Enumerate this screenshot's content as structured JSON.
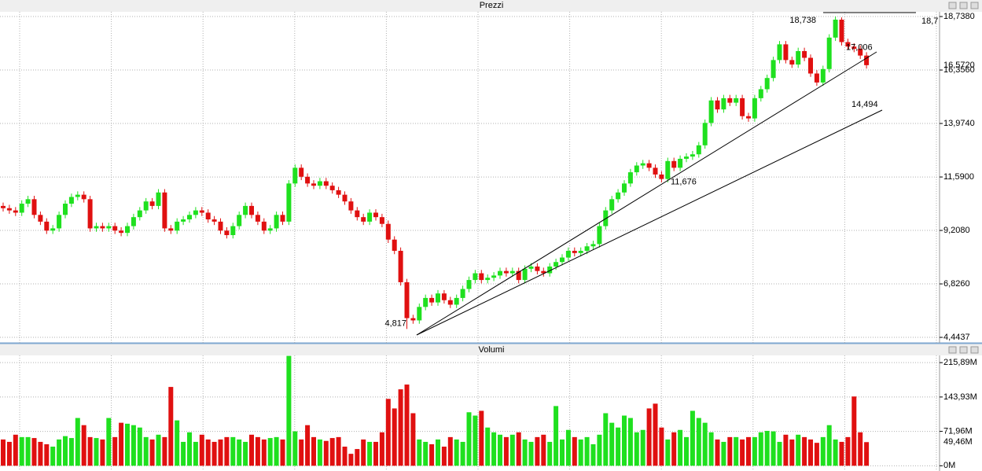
{
  "chart_data": {
    "type": "candlestick",
    "title": "Prezzi",
    "up_color": "#1fe01f",
    "down_color": "#e01010",
    "ylim": [
      4.2,
      18.95
    ],
    "yticks": [
      {
        "value": 4.4437,
        "label": "4,4437"
      },
      {
        "value": 6.826,
        "label": "6,8260"
      },
      {
        "value": 9.208,
        "label": "9,2080"
      },
      {
        "value": 11.59,
        "label": "11,5900"
      },
      {
        "value": 13.974,
        "label": "13,9740"
      },
      {
        "value": 16.356,
        "label": "16,3560"
      },
      {
        "value": 18.738,
        "label": "18,7380"
      }
    ],
    "last_label": {
      "value": 16.572,
      "label": "16,5720"
    },
    "open": [
      10.3,
      10.2,
      10.1,
      10.0,
      10.4,
      10.6,
      9.9,
      9.6,
      9.2,
      9.3,
      9.9,
      10.4,
      10.7,
      10.8,
      10.6,
      9.3,
      9.4,
      9.3,
      9.4,
      9.2,
      9.1,
      9.4,
      9.8,
      10.1,
      10.5,
      10.3,
      10.9,
      9.3,
      9.2,
      9.6,
      9.7,
      9.9,
      10.1,
      10.0,
      9.7,
      9.6,
      9.2,
      9.0,
      9.4,
      9.9,
      10.3,
      9.9,
      9.6,
      9.2,
      9.3,
      9.9,
      9.6,
      11.3,
      12.0,
      11.6,
      11.3,
      11.2,
      11.4,
      11.2,
      11.0,
      10.8,
      10.5,
      10.1,
      9.8,
      9.6,
      10.0,
      9.8,
      9.5,
      8.8,
      8.3,
      6.9,
      5.3,
      5.2,
      5.8,
      6.2,
      6.0,
      6.4,
      6.1,
      5.9,
      6.2,
      6.6,
      7.0,
      7.3,
      7.0,
      7.1,
      7.2,
      7.4,
      7.3,
      7.4,
      7.0,
      7.5,
      7.6,
      7.4,
      7.3,
      7.6,
      7.8,
      8.0,
      8.3,
      8.2,
      8.3,
      8.5,
      8.6,
      9.4,
      10.1,
      10.6,
      10.9,
      11.3,
      11.8,
      12.1,
      12.2,
      12.0,
      11.7,
      11.5,
      12.3,
      12.0,
      12.4,
      12.5,
      12.6,
      13.0,
      14.0,
      15.0,
      14.6,
      15.1,
      14.9,
      15.1,
      14.3,
      14.2,
      15.1,
      15.5,
      16.0,
      16.8,
      17.5,
      16.8,
      16.6,
      17.2,
      16.9,
      16.2,
      15.8,
      16.4,
      17.8,
      18.6,
      17.6,
      17.4,
      17.3,
      17.0
    ],
    "high": [
      10.45,
      10.35,
      10.25,
      10.55,
      10.75,
      10.75,
      10.05,
      9.75,
      9.45,
      10.05,
      10.55,
      10.85,
      10.95,
      10.95,
      10.75,
      9.55,
      9.55,
      9.55,
      9.55,
      9.35,
      9.55,
      9.95,
      10.25,
      10.65,
      10.65,
      11.05,
      11.05,
      9.45,
      9.75,
      9.85,
      10.05,
      10.25,
      10.25,
      10.15,
      9.85,
      9.75,
      9.35,
      9.55,
      10.05,
      10.45,
      10.45,
      10.05,
      9.75,
      9.45,
      10.05,
      10.05,
      11.45,
      12.15,
      12.15,
      11.75,
      11.45,
      11.55,
      11.55,
      11.35,
      11.15,
      10.95,
      10.65,
      10.25,
      9.95,
      10.15,
      10.15,
      9.95,
      9.65,
      8.95,
      8.45,
      7.05,
      5.45,
      5.95,
      6.35,
      6.35,
      6.55,
      6.55,
      6.25,
      6.35,
      6.75,
      7.15,
      7.45,
      7.45,
      7.25,
      7.35,
      7.55,
      7.55,
      7.55,
      7.55,
      7.65,
      7.75,
      7.75,
      7.55,
      7.75,
      7.95,
      8.15,
      8.45,
      8.45,
      8.45,
      8.65,
      8.75,
      9.55,
      10.25,
      10.75,
      11.05,
      11.45,
      11.95,
      12.25,
      12.35,
      12.35,
      12.15,
      11.85,
      12.45,
      12.45,
      12.55,
      12.65,
      12.75,
      13.15,
      14.15,
      15.15,
      15.15,
      15.25,
      15.25,
      15.25,
      15.25,
      14.45,
      15.25,
      15.65,
      16.15,
      16.95,
      17.65,
      17.65,
      16.95,
      17.35,
      17.35,
      17.05,
      16.35,
      16.55,
      17.95,
      18.738,
      18.7,
      17.75,
      17.55,
      17.45,
      17.15
    ],
    "low": [
      10.05,
      9.95,
      9.85,
      9.85,
      10.25,
      9.75,
      9.45,
      9.05,
      9.05,
      9.15,
      9.75,
      10.25,
      10.55,
      10.45,
      9.15,
      9.15,
      9.15,
      9.15,
      9.05,
      8.95,
      8.95,
      9.25,
      9.65,
      9.95,
      10.15,
      10.15,
      9.15,
      9.05,
      9.05,
      9.45,
      9.55,
      9.75,
      9.85,
      9.55,
      9.45,
      9.05,
      8.85,
      8.85,
      9.25,
      9.75,
      9.75,
      9.45,
      9.05,
      9.05,
      9.15,
      9.45,
      9.45,
      11.15,
      11.45,
      11.15,
      11.05,
      11.05,
      11.05,
      10.85,
      10.65,
      10.35,
      9.95,
      9.65,
      9.45,
      9.45,
      9.65,
      9.35,
      8.65,
      8.15,
      6.75,
      4.817,
      5.05,
      5.05,
      5.65,
      5.85,
      5.85,
      5.95,
      5.75,
      5.75,
      6.05,
      6.45,
      6.85,
      6.85,
      6.85,
      6.95,
      7.05,
      7.15,
      7.15,
      6.85,
      6.85,
      7.35,
      7.25,
      7.15,
      7.15,
      7.45,
      7.65,
      7.85,
      8.05,
      8.05,
      8.15,
      8.35,
      8.45,
      9.25,
      9.95,
      10.45,
      10.75,
      11.15,
      11.65,
      11.95,
      11.85,
      11.55,
      11.35,
      11.35,
      11.85,
      11.85,
      12.25,
      12.35,
      12.45,
      12.85,
      13.85,
      14.45,
      14.45,
      14.75,
      14.75,
      14.15,
      14.05,
      14.05,
      14.95,
      15.35,
      15.85,
      16.65,
      16.65,
      16.45,
      16.45,
      16.75,
      16.05,
      15.65,
      15.65,
      16.25,
      17.65,
      17.45,
      17.25,
      17.15,
      16.85,
      16.42
    ],
    "close": [
      10.2,
      10.1,
      10.0,
      10.4,
      10.6,
      9.9,
      9.6,
      9.2,
      9.3,
      9.9,
      10.4,
      10.7,
      10.8,
      10.6,
      9.3,
      9.4,
      9.3,
      9.4,
      9.2,
      9.1,
      9.4,
      9.8,
      10.1,
      10.5,
      10.3,
      10.9,
      9.3,
      9.2,
      9.6,
      9.7,
      9.9,
      10.1,
      10.0,
      9.7,
      9.6,
      9.2,
      9.0,
      9.4,
      9.9,
      10.3,
      9.9,
      9.6,
      9.2,
      9.3,
      9.9,
      9.6,
      11.3,
      12.0,
      11.6,
      11.3,
      11.2,
      11.4,
      11.2,
      11.0,
      10.8,
      10.5,
      10.1,
      9.8,
      9.6,
      10.0,
      9.8,
      9.5,
      8.8,
      8.3,
      6.9,
      5.3,
      5.2,
      5.8,
      6.2,
      6.0,
      6.4,
      6.1,
      5.9,
      6.2,
      6.6,
      7.0,
      7.3,
      7.0,
      7.1,
      7.2,
      7.4,
      7.3,
      7.4,
      7.0,
      7.5,
      7.6,
      7.4,
      7.3,
      7.6,
      7.8,
      8.0,
      8.3,
      8.2,
      8.3,
      8.5,
      8.6,
      9.4,
      10.1,
      10.6,
      10.9,
      11.3,
      11.8,
      12.1,
      12.2,
      12.0,
      11.7,
      11.5,
      12.3,
      12.0,
      12.4,
      12.5,
      12.6,
      13.0,
      14.0,
      15.0,
      14.6,
      15.1,
      14.9,
      15.1,
      14.3,
      14.2,
      15.1,
      15.5,
      16.0,
      16.8,
      17.5,
      16.8,
      16.6,
      17.2,
      16.9,
      16.2,
      15.8,
      16.4,
      17.8,
      18.6,
      17.6,
      17.4,
      17.3,
      17.0,
      16.572
    ],
    "annotations": [
      {
        "label": "18,738",
        "value": 18.738
      },
      {
        "label": "17,006",
        "value": 17.006
      },
      {
        "label": "14,494",
        "value": 14.494
      },
      {
        "label": "11,676",
        "value": 11.676
      },
      {
        "label": "4,817",
        "value": 4.817
      },
      {
        "label": "18,7",
        "value": 18.738
      }
    ],
    "volume": {
      "title": "Volumi",
      "ylim": [
        -11,
        231
      ],
      "yticks": [
        {
          "value": 0,
          "label": "0M"
        },
        {
          "value": 71.96,
          "label": "71,96M"
        },
        {
          "value": 143.93,
          "label": "143,93M"
        },
        {
          "value": 215.89,
          "label": "215,89M"
        }
      ],
      "last_label": {
        "value": 49.46,
        "label": "49,46M"
      },
      "values": [
        55,
        50,
        65,
        60,
        60,
        58,
        50,
        45,
        40,
        55,
        62,
        58,
        100,
        85,
        60,
        58,
        55,
        100,
        60,
        90,
        88,
        85,
        80,
        60,
        55,
        65,
        60,
        165,
        95,
        50,
        70,
        50,
        65,
        55,
        50,
        55,
        60,
        60,
        55,
        50,
        65,
        60,
        55,
        58,
        60,
        55,
        230,
        72,
        55,
        85,
        60,
        55,
        52,
        58,
        60,
        40,
        25,
        35,
        55,
        50,
        50,
        70,
        140,
        120,
        160,
        170,
        110,
        55,
        50,
        45,
        55,
        40,
        60,
        55,
        50,
        112,
        105,
        115,
        80,
        70,
        65,
        60,
        65,
        70,
        55,
        50,
        60,
        65,
        50,
        125,
        55,
        75,
        60,
        55,
        60,
        45,
        65,
        110,
        90,
        80,
        105,
        100,
        70,
        75,
        120,
        130,
        80,
        55,
        70,
        75,
        60,
        115,
        100,
        90,
        70,
        55,
        50,
        60,
        60,
        55,
        60,
        60,
        70,
        73,
        72,
        50,
        65,
        55,
        65,
        60,
        55,
        48,
        60,
        85,
        55,
        50,
        60,
        145,
        70,
        49.46
      ]
    }
  }
}
